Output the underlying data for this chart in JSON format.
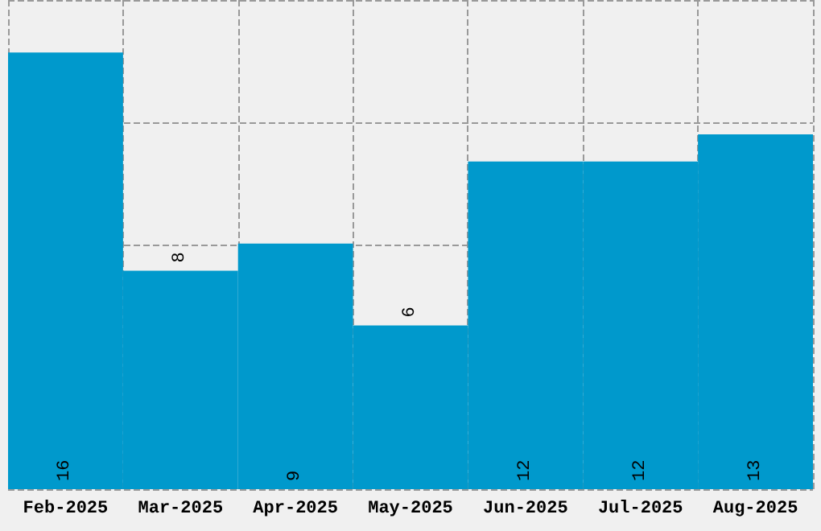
{
  "chart_data": {
    "type": "bar",
    "categories": [
      "Feb-2025",
      "Mar-2025",
      "Apr-2025",
      "May-2025",
      "Jun-2025",
      "Jul-2025",
      "Aug-2025"
    ],
    "values": [
      16,
      8,
      9,
      6,
      12,
      12,
      13
    ],
    "color": "#0099cc",
    "grid": true,
    "data_labels": true,
    "tick_labels": "x"
  }
}
